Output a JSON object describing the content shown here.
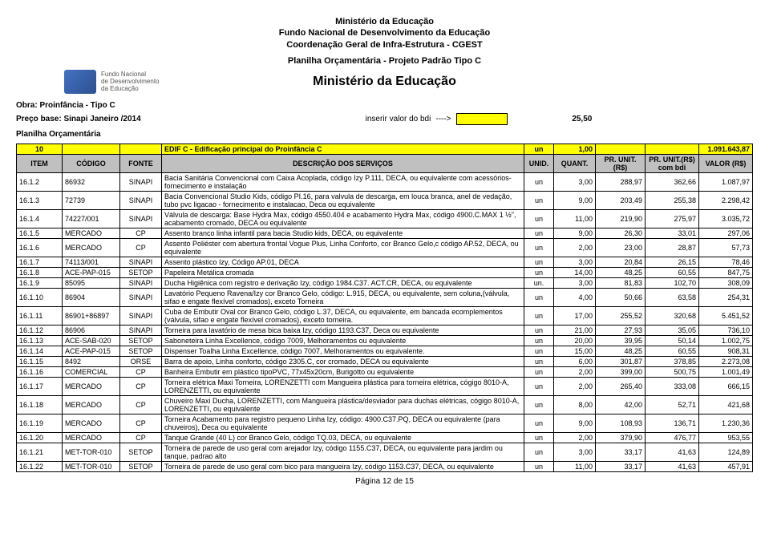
{
  "header": {
    "line1": "Ministério da Educação",
    "line2": "Fundo Nacional de Desenvolvimento da Educação",
    "line3": "Coordenação Geral de Infra-Estrutura - CGEST",
    "planilha": "Planilha Orçamentária - Projeto Padrão Tipo C",
    "main_title": "Ministério da Educação",
    "logo_text1": "Fundo Nacional",
    "logo_text2": "de Desenvolvimento",
    "logo_text3": "da Educação"
  },
  "meta": {
    "obra": "Obra: Proinfância - Tipo  C",
    "preco_base": "Preço base: Sinapi Janeiro /2014",
    "inserir": "inserir valor do bdi",
    "arrow": "---->",
    "bdi_val": "25,50",
    "planilha_label": "Planilha Orçamentária"
  },
  "yellow": {
    "code": "10",
    "desc": "EDIF C - Edificação principal do Proinfância C",
    "unid": "un",
    "quant": "1,00",
    "total": "1.091.643,87"
  },
  "cols": {
    "item": "ITEM",
    "codigo": "CÓDIGO",
    "fonte": "FONTE",
    "desc": "DESCRIÇÃO DOS SERVIÇOS",
    "unid": "UNID.",
    "quant": "QUANT.",
    "pr": "PR. UNIT.(R$)",
    "prbdi": "PR. UNIT.(R$) com bdi",
    "valor": "VALOR (R$)"
  },
  "rows": [
    {
      "item": "16.1.2",
      "codigo": "86932",
      "fonte": "SINAPI",
      "desc": "Bacia Sanitária Convencional com Caixa Acoplada, código Izy P.111, DECA, ou equivalente com acessórios- fornecimento e instalação",
      "unid": "un",
      "quant": "3,00",
      "pr": "288,97",
      "prbdi": "362,66",
      "valor": "1.087,97"
    },
    {
      "item": "16.1.3",
      "codigo": "72739",
      "fonte": "SINAPI",
      "desc": "Bacia Convencional Studio Kids, código PI.16, para valvula de descarga, em louca branca, anel de vedação, tubo pvc ligacao - fornecimento e instalacao, Deca ou equivalente",
      "unid": "un",
      "quant": "9,00",
      "pr": "203,49",
      "prbdi": "255,38",
      "valor": "2.298,42"
    },
    {
      "item": "16.1.4",
      "codigo": "74227/001",
      "fonte": "SINAPI",
      "desc": "Válvula de descarga: Base Hydra Max, código 4550.404 e acabamento Hydra Max, código 4900.C.MAX 1 ½\", acabamento cromado, DECA ou equivalente",
      "unid": "un",
      "quant": "11,00",
      "pr": "219,90",
      "prbdi": "275,97",
      "valor": "3.035,72"
    },
    {
      "item": "16.1.5",
      "codigo": "MERCADO",
      "fonte": "CP",
      "desc": "Assento branco linha infantil para bacia Studio kids, DECA, ou equivalente",
      "unid": "un",
      "quant": "9,00",
      "pr": "26,30",
      "prbdi": "33,01",
      "valor": "297,06"
    },
    {
      "item": "16.1.6",
      "codigo": "MERCADO",
      "fonte": "CP",
      "desc": "Assento Poliéster com abertura frontal Vogue Plus, Linha Conforto, cor Branco Gelo,c código AP.52, DECA, ou equivalente",
      "unid": "un",
      "quant": "2,00",
      "pr": "23,00",
      "prbdi": "28,87",
      "valor": "57,73"
    },
    {
      "item": "16.1.7",
      "codigo": "74113/001",
      "fonte": "SINAPI",
      "desc": "Assento plástico Izy, Código AP.01, DECA",
      "unid": "un",
      "quant": "3,00",
      "pr": "20,84",
      "prbdi": "26,15",
      "valor": "78,46"
    },
    {
      "item": "16.1.8",
      "codigo": "ACE-PAP-015",
      "fonte": "SETOP",
      "desc": "Papeleira Metálica cromada",
      "unid": "un",
      "quant": "14,00",
      "pr": "48,25",
      "prbdi": "60,55",
      "valor": "847,75"
    },
    {
      "item": "16.1.9",
      "codigo": "85095",
      "fonte": "SINAPI",
      "desc": "Ducha Higiênica com registro e derivação Izy, código 1984.C37. ACT.CR, DECA, ou equivalente",
      "unid": "un.",
      "quant": "3,00",
      "pr": "81,83",
      "prbdi": "102,70",
      "valor": "308,09"
    },
    {
      "item": "16.1.10",
      "codigo": "86904",
      "fonte": "SINAPI",
      "desc": "Lavatório Pequeno Ravena/Izy cor Branco Gelo, código: L.915, DECA, ou equivalente, sem coluna,(válvula, sifao e engate flexível cromados), exceto Torneira",
      "unid": "un",
      "quant": "4,00",
      "pr": "50,66",
      "prbdi": "63,58",
      "valor": "254,31"
    },
    {
      "item": "16.1.11",
      "codigo": "86901+86897",
      "fonte": "SINAPI",
      "desc": "Cuba de Embutir Oval cor Branco Gelo, código L.37, DECA, ou equivalente, em bancada ecomplementos (válvula, sifao e engate flexível cromados), exceto torneira.",
      "unid": "un",
      "quant": "17,00",
      "pr": "255,52",
      "prbdi": "320,68",
      "valor": "5.451,52"
    },
    {
      "item": "16.1.12",
      "codigo": "86906",
      "fonte": "SINAPI",
      "desc": "Torneira para lavatório de mesa bica baixa Izy, código 1193.C37, Deca ou equivalente",
      "unid": "un",
      "quant": "21,00",
      "pr": "27,93",
      "prbdi": "35,05",
      "valor": "736,10"
    },
    {
      "item": "16.1.13",
      "codigo": "ACE-SAB-020",
      "fonte": "SETOP",
      "desc": "Saboneteira Linha Excellence, código 7009, Melhoramentos ou equivalente",
      "unid": "un",
      "quant": "20,00",
      "pr": "39,95",
      "prbdi": "50,14",
      "valor": "1.002,75"
    },
    {
      "item": "16.1.14",
      "codigo": "ACE-PAP-015",
      "fonte": "SETOP",
      "desc": "Dispenser Toalha Linha Excellence, código 7007, Melhoramentos ou equivalente.",
      "unid": "un",
      "quant": "15,00",
      "pr": "48,25",
      "prbdi": "60,55",
      "valor": "908,31"
    },
    {
      "item": "16.1.15",
      "codigo": "8492",
      "fonte": "ORSE",
      "desc": "Barra de apoio, Linha conforto, código 2305.C, cor cromado, DECA ou equivalente",
      "unid": "un",
      "quant": "6,00",
      "pr": "301,87",
      "prbdi": "378,85",
      "valor": "2.273,08"
    },
    {
      "item": "16.1.16",
      "codigo": "COMERCIAL",
      "fonte": "CP",
      "desc": "Banheira Embutir em plástico tipoPVC, 77x45x20cm, Burigotto ou equivalente",
      "unid": "un",
      "quant": "2,00",
      "pr": "399,00",
      "prbdi": "500,75",
      "valor": "1.001,49"
    },
    {
      "item": "16.1.17",
      "codigo": "MERCADO",
      "fonte": "CP",
      "desc": "Torneira elétrica Maxi Torneira, LORENZETTI com Mangueira plástica para torneira elétrica, cógigo 8010-A, LORENZETTI, ou equivalente",
      "unid": "un",
      "quant": "2,00",
      "pr": "265,40",
      "prbdi": "333,08",
      "valor": "666,15"
    },
    {
      "item": "16.1.18",
      "codigo": "MERCADO",
      "fonte": "CP",
      "desc": "Chuveiro Maxi Ducha, LORENZETTI, com Mangueira plástica/desviador para duchas elétricas, cógigo 8010-A, LORENZETTI,  ou equivalente",
      "unid": "un",
      "quant": "8,00",
      "pr": "42,00",
      "prbdi": "52,71",
      "valor": "421,68"
    },
    {
      "item": "16.1.19",
      "codigo": "MERCADO",
      "fonte": "CP",
      "desc": "Torneira Acabamento para registro pequeno Linha Izy, código: 4900.C37.PQ, DECA ou equivalente (para chuveiros), Deca ou equivalente",
      "unid": "un",
      "quant": "9,00",
      "pr": "108,93",
      "prbdi": "136,71",
      "valor": "1.230,36"
    },
    {
      "item": "16.1.20",
      "codigo": "MERCADO",
      "fonte": "CP",
      "desc": "Tanque Grande (40 L) cor Branco Gelo, código TQ.03, DECA, ou equivalente",
      "unid": "un",
      "quant": "2,00",
      "pr": "379,90",
      "prbdi": "476,77",
      "valor": "953,55"
    },
    {
      "item": "16.1.21",
      "codigo": "MET-TOR-010",
      "fonte": "SETOP",
      "desc": "Torneira de parede de uso geral com arejador Izy, código 1155.C37, DECA, ou equivalente para jardim ou tanque, padrao alto",
      "unid": "un",
      "quant": "3,00",
      "pr": "33,17",
      "prbdi": "41,63",
      "valor": "124,89"
    },
    {
      "item": "16.1.22",
      "codigo": "MET-TOR-010",
      "fonte": "SETOP",
      "desc": "Torneira de parede de uso geral com bico para mangueira Izy, código 1153.C37, DECA, ou equivalente",
      "unid": "un",
      "quant": "11,00",
      "pr": "33,17",
      "prbdi": "41,63",
      "valor": "457,91"
    }
  ],
  "footer": "Página 12 de 15"
}
